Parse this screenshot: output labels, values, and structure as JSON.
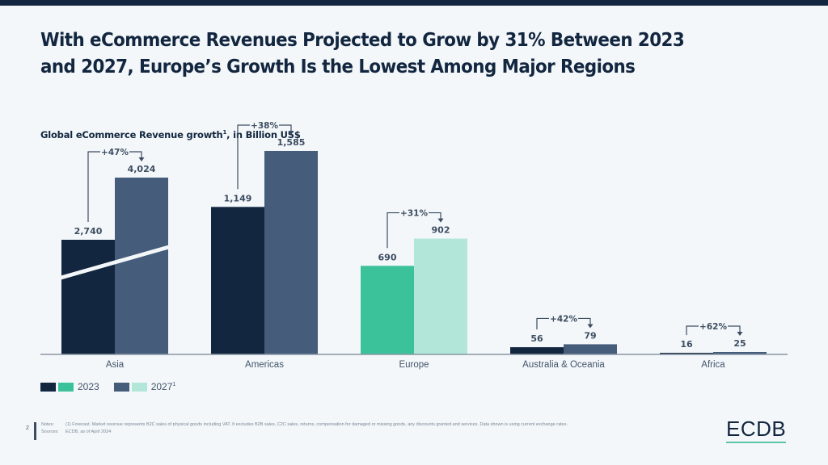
{
  "title": "With eCommerce Revenues Projected to Grow by 31% Between 2023 and 2027, Europe’s Growth Is the Lowest Among Major Regions",
  "subtitle": {
    "text": "Global eCommerce Revenue growth",
    "superscript": "1",
    "suffix": ", in Billion US$"
  },
  "legend": [
    {
      "label": "2023",
      "colors": [
        "#12263f",
        "#3cc29b"
      ],
      "superscript": ""
    },
    {
      "label": "2027",
      "colors": [
        "#455c7a",
        "#b2e6d8"
      ],
      "superscript": "1"
    }
  ],
  "chart_data": {
    "type": "bar",
    "title": "Global eCommerce Revenue growth, in Billion US$",
    "xlabel": "",
    "ylabel": "Billion US$",
    "axis_break": "Asia",
    "grid": false,
    "legend_position": "bottom-left",
    "categories": [
      "Asia",
      "Americas",
      "Europe",
      "Australia & Oceania",
      "Africa"
    ],
    "series": [
      {
        "name": "2023",
        "values": [
          2740,
          1149,
          690,
          56,
          16
        ],
        "labels": [
          "2,740",
          "1,149",
          "690",
          "56",
          "16"
        ]
      },
      {
        "name": "2027",
        "values": [
          4024,
          1585,
          902,
          79,
          25
        ],
        "labels": [
          "4,024",
          "1,585",
          "902",
          "79",
          "25"
        ]
      }
    ],
    "growth_labels": [
      "+47%",
      "+38%",
      "+31%",
      "+42%",
      "+62%"
    ],
    "highlight_category": "Europe",
    "colors": {
      "2023": "#12263f",
      "2027": "#455c7a",
      "highlight_2023": "#3cc29b",
      "highlight_2027": "#b2e6d8",
      "axis": "#8a96a3",
      "label": "#3d4d61"
    }
  },
  "footer": {
    "page_number": "2",
    "notes_label": "Notes:",
    "notes_text": "(1) Forecast. Market revenue represents B2C sales of physical goods including VAT. It excludes B2B sales, C2C sales, returns, compensation for damaged or missing goods, any discounts granted and services. Data shown is using current exchange rates.",
    "sources_label": "Sources:",
    "sources_text": "ECDB, as of April 2024"
  },
  "logo": "ECDB"
}
